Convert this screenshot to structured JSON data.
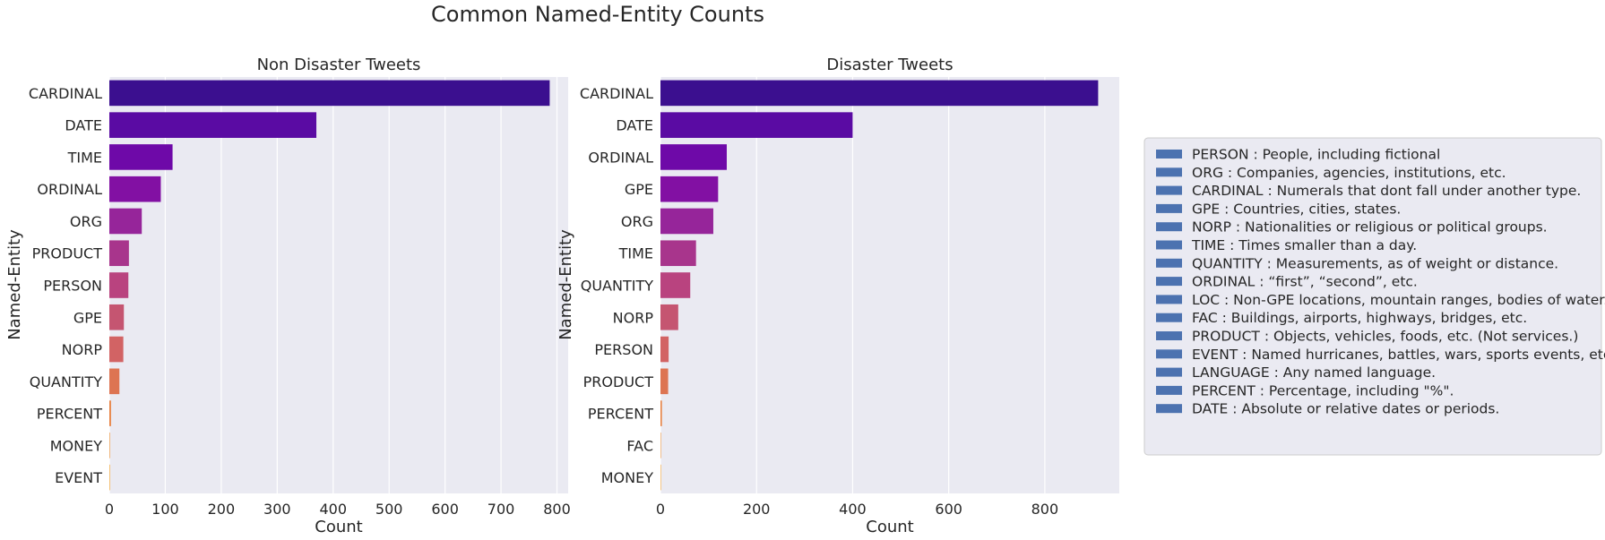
{
  "figure": {
    "title": "Common Named-Entity Counts"
  },
  "chart_data": [
    {
      "type": "bar",
      "orientation": "horizontal",
      "title": "Non Disaster Tweets",
      "xlabel": "Count",
      "ylabel": "Named-Entity",
      "categories": [
        "CARDINAL",
        "DATE",
        "TIME",
        "ORDINAL",
        "ORG",
        "PRODUCT",
        "PERSON",
        "GPE",
        "NORP",
        "QUANTITY",
        "PERCENT",
        "MONEY",
        "EVENT"
      ],
      "values": [
        787,
        370,
        113,
        92,
        58,
        35,
        34,
        26,
        25,
        18,
        3,
        1,
        1
      ],
      "xlim": [
        0,
        820
      ],
      "xticks": [
        0,
        100,
        200,
        300,
        400,
        500,
        600,
        700,
        800
      ],
      "grid": true
    },
    {
      "type": "bar",
      "orientation": "horizontal",
      "title": "Disaster Tweets",
      "xlabel": "Count",
      "ylabel": "Named-Entity",
      "categories": [
        "CARDINAL",
        "DATE",
        "ORDINAL",
        "GPE",
        "ORG",
        "TIME",
        "QUANTITY",
        "NORP",
        "PERSON",
        "PRODUCT",
        "PERCENT",
        "FAC",
        "MONEY"
      ],
      "values": [
        911,
        400,
        138,
        120,
        110,
        74,
        62,
        37,
        17,
        16,
        3,
        1,
        1
      ],
      "xlim": [
        0,
        955
      ],
      "xticks": [
        0,
        200,
        400,
        600,
        800
      ],
      "grid": true
    }
  ],
  "palette": [
    "#3b0f8f",
    "#5a0ba3",
    "#6e09a8",
    "#8210a3",
    "#96259a",
    "#a8358c",
    "#b9437f",
    "#c55571",
    "#d26364",
    "#dd7452",
    "#e88344",
    "#f29334",
    "#f8a528"
  ],
  "colors": {
    "plot_bg": "#eaeaf2",
    "grid": "#ffffff",
    "legend_patch": "#4c72b0",
    "legend_border": "#cccccc"
  },
  "legend": {
    "placement": "right",
    "items": [
      "PERSON : People, including fictional",
      "ORG : Companies, agencies, institutions, etc.",
      "CARDINAL : Numerals that dont fall under another type.",
      "GPE : Countries, cities, states.",
      "NORP : Nationalities or religious or political groups.",
      "TIME : Times smaller than a day.",
      "QUANTITY : Measurements, as of weight or distance.",
      "ORDINAL : “first”, “second”, etc.",
      "LOC : Non-GPE locations, mountain ranges, bodies of water.",
      "FAC : Buildings, airports, highways, bridges, etc.",
      "PRODUCT : Objects, vehicles, foods, etc. (Not services.)",
      "EVENT : Named hurricanes, battles, wars, sports events, etc.",
      "LANGUAGE : Any named language.",
      "PERCENT : Percentage, including \"%\".",
      "DATE : Absolute or relative dates or periods."
    ]
  }
}
